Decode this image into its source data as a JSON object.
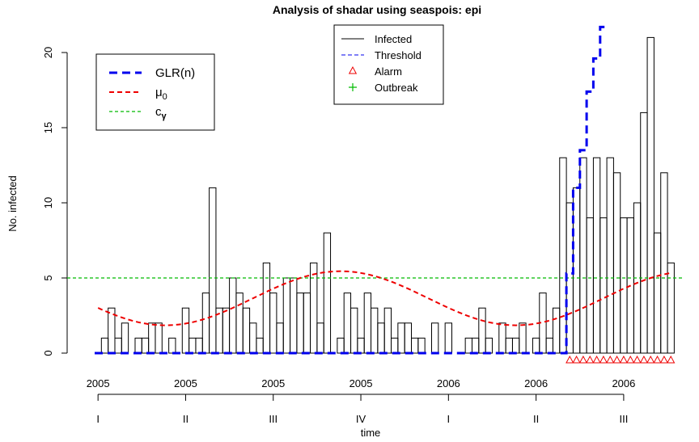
{
  "chart_data": {
    "type": "bar",
    "title": "Analysis of shadar using seaspois: epi",
    "xlabel": "time",
    "ylabel": "No. infected",
    "ylim": [
      0,
      22
    ],
    "yticks": [
      0,
      5,
      10,
      15,
      20
    ],
    "grid": false,
    "weeks_start": 1,
    "counts": [
      0,
      1,
      3,
      1,
      2,
      0,
      1,
      1,
      2,
      2,
      0,
      1,
      0,
      3,
      1,
      1,
      4,
      11,
      3,
      3,
      5,
      4,
      3,
      2,
      1,
      6,
      4,
      2,
      5,
      5,
      4,
      4,
      6,
      2,
      8,
      0,
      1,
      4,
      3,
      1,
      4,
      3,
      2,
      3,
      1,
      2,
      2,
      1,
      1,
      0,
      2,
      0,
      2,
      0,
      0,
      1,
      1,
      3,
      1,
      0,
      2,
      1,
      1,
      2,
      0,
      1,
      4,
      1,
      3,
      13,
      10,
      11,
      13,
      9,
      13,
      9,
      13,
      12,
      9,
      9,
      10,
      16,
      21,
      8,
      12,
      6
    ],
    "threshold_line": 5,
    "glr": [
      0,
      0,
      0,
      0,
      0,
      0,
      0,
      0,
      0,
      0,
      0,
      0,
      0,
      0,
      0,
      0,
      0,
      0,
      0,
      0,
      0,
      0,
      0,
      0,
      0,
      0,
      0,
      0,
      0,
      0,
      0,
      0,
      0,
      0,
      0,
      0,
      0,
      0,
      0,
      0,
      0,
      0,
      0,
      0,
      0,
      0,
      0,
      0,
      0,
      0,
      0,
      0,
      0,
      0,
      0,
      0,
      0,
      0,
      0,
      0,
      0,
      0,
      0,
      0,
      0,
      0,
      0,
      0,
      0,
      0,
      5.3,
      11,
      13.5,
      17.4,
      19.6,
      21.7
    ],
    "alarm_start_week": 71,
    "mu0": {
      "mean": 3.65,
      "amplitude": 1.8,
      "period": 52,
      "peak_week": 37
    },
    "colors": {
      "bars": "#000000",
      "glr": "#0000ee",
      "mu0": "#ee0000",
      "threshold": "#00bb00",
      "alarm": "#ee0000",
      "outbreak": "#00bb00"
    },
    "x_axis": {
      "ticks": [
        {
          "week": 1,
          "year": "2005",
          "quarter": "I"
        },
        {
          "week": 14,
          "year": "2005",
          "quarter": "II"
        },
        {
          "week": 27,
          "year": "2005",
          "quarter": "III"
        },
        {
          "week": 40,
          "year": "2005",
          "quarter": "IV"
        },
        {
          "week": 53,
          "year": "2006",
          "quarter": "I"
        },
        {
          "week": 66,
          "year": "2006",
          "quarter": "II"
        },
        {
          "week": 79,
          "year": "2006",
          "quarter": "III"
        }
      ]
    },
    "legend_main": {
      "position": "top-center",
      "entries": [
        {
          "label": "Infected",
          "kind": "solid"
        },
        {
          "label": "Threshold",
          "kind": "dashed"
        },
        {
          "label": "Alarm",
          "kind": "triangle"
        },
        {
          "label": "Outbreak",
          "kind": "plus"
        }
      ]
    },
    "legend_side": {
      "position": "top-left",
      "entries": [
        {
          "label": "GLR(n)",
          "kind": "glr"
        },
        {
          "label": "μ",
          "sub": "0",
          "kind": "mu0"
        },
        {
          "label": "c",
          "sub": "γ",
          "kind": "cgamma"
        }
      ]
    }
  }
}
